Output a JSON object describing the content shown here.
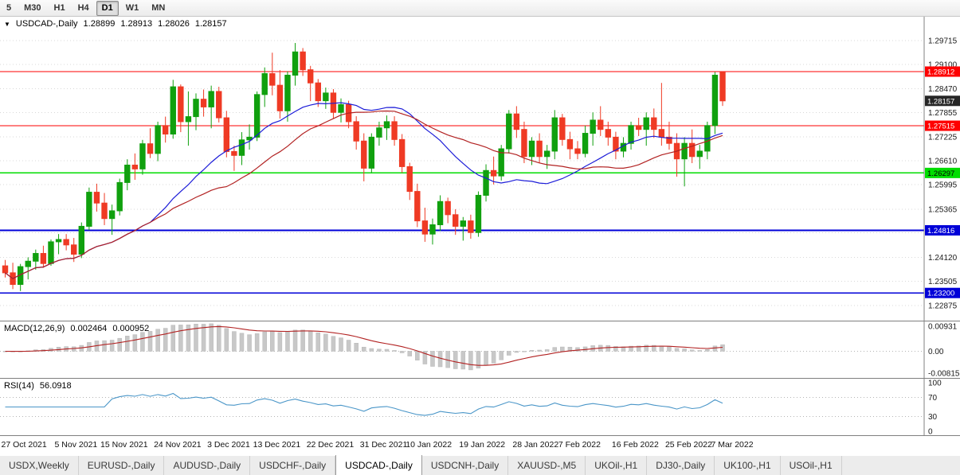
{
  "toolbar": {
    "timeframes": [
      "5",
      "M30",
      "H1",
      "H4",
      "D1",
      "W1",
      "MN"
    ],
    "active": "D1"
  },
  "chart": {
    "header": {
      "collapse_icon": "▼",
      "symbol": "USDCAD-,Daily",
      "open": "1.28899",
      "high": "1.28913",
      "low": "1.28026",
      "close": "1.28157"
    }
  },
  "colors": {
    "up": "#10a00e",
    "down": "#ef3a24",
    "ma_fast": "#1c1cd8",
    "ma_slow": "#b22222",
    "macd_hist": "#c8c8c8",
    "macd_signal": "#b22222",
    "rsi_line": "#4a96c8",
    "grid": "#d8d8d8",
    "axis_border": "#808080",
    "badge_current": "#262626"
  },
  "chart_data": {
    "type": "candlestick",
    "title": "USDCAD-,Daily",
    "ohlc_header": {
      "open": 1.28899,
      "high": 1.28913,
      "low": 1.28026,
      "close": 1.28157
    },
    "y_axis": {
      "min": 1.2265,
      "max": 1.3,
      "ticks": [
        1.29715,
        1.291,
        1.2847,
        1.27855,
        1.27225,
        1.2661,
        1.25995,
        1.25365,
        1.2475,
        1.2412,
        1.23505,
        1.22875
      ]
    },
    "levels": [
      {
        "value": 1.28912,
        "label": "1.28912",
        "color": "#fe0000",
        "badge_text": "#ffffff",
        "width": 1.3
      },
      {
        "value": 1.27515,
        "label": "1.27515",
        "color": "#fe0000",
        "badge_text": "#ffffff",
        "width": 1.3
      },
      {
        "value": 1.26297,
        "label": "1.26297",
        "color": "#00dd00",
        "badge_text": "#000000",
        "width": 1.5
      },
      {
        "value": 1.24816,
        "label": "1.24816",
        "color": "#0000d8",
        "badge_text": "#ffffff",
        "width": 1.7
      },
      {
        "value": 1.232,
        "label": "1.23200",
        "color": "#0000d8",
        "badge_text": "#ffffff",
        "width": 1.7
      }
    ],
    "current_price": {
      "value": 1.28157,
      "label": "1.28157"
    },
    "moving_averages": [
      {
        "type": "sma",
        "period": 20,
        "color": "#1c1cd8"
      },
      {
        "type": "sma",
        "period": 30,
        "color": "#b22222"
      }
    ],
    "candles": [
      [
        "27 Oct 2021",
        1.239,
        1.2405,
        1.236,
        1.2372
      ],
      [
        "28 Oct 2021",
        1.2372,
        1.2398,
        1.233,
        1.2342
      ],
      [
        "29 Oct 2021",
        1.2342,
        1.2395,
        1.2325,
        1.2388
      ],
      [
        "1 Nov 2021",
        1.2388,
        1.2412,
        1.2355,
        1.2402
      ],
      [
        "2 Nov 2021",
        1.2402,
        1.2432,
        1.238,
        1.2422
      ],
      [
        "3 Nov 2021",
        1.2422,
        1.2442,
        1.2385,
        1.2396
      ],
      [
        "4 Nov 2021",
        1.2396,
        1.2458,
        1.239,
        1.2452
      ],
      [
        "5 Nov 2021",
        1.2452,
        1.2472,
        1.242,
        1.2458
      ],
      [
        "8 Nov 2021",
        1.2458,
        1.2472,
        1.243,
        1.2444
      ],
      [
        "9 Nov 2021",
        1.2444,
        1.2462,
        1.24,
        1.242
      ],
      [
        "10 Nov 2021",
        1.242,
        1.2502,
        1.241,
        1.2492
      ],
      [
        "11 Nov 2021",
        1.2492,
        1.2592,
        1.2482,
        1.258
      ],
      [
        "12 Nov 2021",
        1.258,
        1.2602,
        1.253,
        1.2552
      ],
      [
        "15 Nov 2021",
        1.2552,
        1.2578,
        1.2495,
        1.2512
      ],
      [
        "16 Nov 2021",
        1.2512,
        1.2548,
        1.247,
        1.2532
      ],
      [
        "17 Nov 2021",
        1.2532,
        1.2615,
        1.252,
        1.2605
      ],
      [
        "18 Nov 2021",
        1.2605,
        1.2665,
        1.2585,
        1.265
      ],
      [
        "19 Nov 2021",
        1.265,
        1.268,
        1.2612,
        1.264
      ],
      [
        "22 Nov 2021",
        1.264,
        1.2715,
        1.2625,
        1.2705
      ],
      [
        "23 Nov 2021",
        1.2705,
        1.2745,
        1.2668,
        1.268
      ],
      [
        "24 Nov 2021",
        1.268,
        1.2762,
        1.266,
        1.2752
      ],
      [
        "25 Nov 2021",
        1.2752,
        1.2775,
        1.2708,
        1.273
      ],
      [
        "26 Nov 2021",
        1.273,
        1.287,
        1.2718,
        1.2852
      ],
      [
        "29 Nov 2021",
        1.2852,
        1.2858,
        1.2735,
        1.2762
      ],
      [
        "30 Nov 2021",
        1.2762,
        1.284,
        1.27,
        1.2775
      ],
      [
        "1 Dec 2021",
        1.2775,
        1.2835,
        1.274,
        1.282
      ],
      [
        "2 Dec 2021",
        1.282,
        1.2845,
        1.2775,
        1.28
      ],
      [
        "3 Dec 2021",
        1.28,
        1.2855,
        1.2745,
        1.284
      ],
      [
        "6 Dec 2021",
        1.284,
        1.2852,
        1.276,
        1.2772
      ],
      [
        "7 Dec 2021",
        1.2772,
        1.279,
        1.267,
        1.2685
      ],
      [
        "8 Dec 2021",
        1.2685,
        1.27,
        1.2635,
        1.2675
      ],
      [
        "9 Dec 2021",
        1.2675,
        1.2735,
        1.265,
        1.2715
      ],
      [
        "10 Dec 2021",
        1.2715,
        1.2755,
        1.269,
        1.2722
      ],
      [
        "13 Dec 2021",
        1.2722,
        1.284,
        1.2712,
        1.2832
      ],
      [
        "14 Dec 2021",
        1.2832,
        1.2902,
        1.28,
        1.2886
      ],
      [
        "15 Dec 2021",
        1.2886,
        1.294,
        1.283,
        1.2856
      ],
      [
        "16 Dec 2021",
        1.2856,
        1.2895,
        1.277,
        1.279
      ],
      [
        "17 Dec 2021",
        1.279,
        1.2892,
        1.2762,
        1.2882
      ],
      [
        "20 Dec 2021",
        1.2882,
        1.2965,
        1.2855,
        1.2942
      ],
      [
        "21 Dec 2021",
        1.2942,
        1.2952,
        1.288,
        1.2896
      ],
      [
        "22 Dec 2021",
        1.2896,
        1.2906,
        1.2815,
        1.2862
      ],
      [
        "23 Dec 2021",
        1.2862,
        1.2872,
        1.28,
        1.2816
      ],
      [
        "24 Dec 2021",
        1.2816,
        1.285,
        1.2795,
        1.2836
      ],
      [
        "27 Dec 2021",
        1.2836,
        1.2846,
        1.277,
        1.2786
      ],
      [
        "28 Dec 2021",
        1.2786,
        1.2822,
        1.276,
        1.2806
      ],
      [
        "29 Dec 2021",
        1.2806,
        1.2816,
        1.2745,
        1.2762
      ],
      [
        "30 Dec 2021",
        1.2762,
        1.2776,
        1.269,
        1.2712
      ],
      [
        "31 Dec 2021",
        1.2712,
        1.2732,
        1.2608,
        1.2642
      ],
      [
        "3 Jan 2022",
        1.2642,
        1.2732,
        1.263,
        1.2722
      ],
      [
        "4 Jan 2022",
        1.2722,
        1.2762,
        1.27,
        1.2746
      ],
      [
        "5 Jan 2022",
        1.2746,
        1.2778,
        1.2715,
        1.2762
      ],
      [
        "6 Jan 2022",
        1.2762,
        1.2776,
        1.27,
        1.2716
      ],
      [
        "7 Jan 2022",
        1.2716,
        1.273,
        1.263,
        1.2646
      ],
      [
        "10 Jan 2022",
        1.2646,
        1.2656,
        1.256,
        1.2582
      ],
      [
        "11 Jan 2022",
        1.2582,
        1.2602,
        1.249,
        1.2506
      ],
      [
        "12 Jan 2022",
        1.2506,
        1.254,
        1.2452,
        1.2472
      ],
      [
        "13 Jan 2022",
        1.2472,
        1.2512,
        1.2445,
        1.2496
      ],
      [
        "14 Jan 2022",
        1.2496,
        1.2572,
        1.248,
        1.2556
      ],
      [
        "17 Jan 2022",
        1.2556,
        1.2566,
        1.25,
        1.2522
      ],
      [
        "18 Jan 2022",
        1.2522,
        1.2536,
        1.247,
        1.2492
      ],
      [
        "19 Jan 2022",
        1.2492,
        1.2516,
        1.2455,
        1.2506
      ],
      [
        "20 Jan 2022",
        1.2506,
        1.2522,
        1.246,
        1.2476
      ],
      [
        "21 Jan 2022",
        1.2476,
        1.2582,
        1.2465,
        1.2572
      ],
      [
        "24 Jan 2022",
        1.2572,
        1.2652,
        1.2556,
        1.2636
      ],
      [
        "25 Jan 2022",
        1.2636,
        1.2672,
        1.26,
        1.2622
      ],
      [
        "26 Jan 2022",
        1.2622,
        1.2702,
        1.261,
        1.2692
      ],
      [
        "27 Jan 2022",
        1.2692,
        1.2792,
        1.268,
        1.2782
      ],
      [
        "28 Jan 2022",
        1.2782,
        1.2802,
        1.272,
        1.2742
      ],
      [
        "31 Jan 2022",
        1.2742,
        1.2762,
        1.2655,
        1.2672
      ],
      [
        "1 Feb 2022",
        1.2672,
        1.2722,
        1.265,
        1.2712
      ],
      [
        "2 Feb 2022",
        1.2712,
        1.2732,
        1.2655,
        1.2672
      ],
      [
        "3 Feb 2022",
        1.2672,
        1.2702,
        1.264,
        1.2686
      ],
      [
        "4 Feb 2022",
        1.2686,
        1.2792,
        1.2665,
        1.2772
      ],
      [
        "7 Feb 2022",
        1.2772,
        1.2782,
        1.27,
        1.2716
      ],
      [
        "8 Feb 2022",
        1.2716,
        1.2736,
        1.2665,
        1.2692
      ],
      [
        "9 Feb 2022",
        1.2692,
        1.2712,
        1.2665,
        1.268
      ],
      [
        "10 Feb 2022",
        1.268,
        1.2752,
        1.267,
        1.2732
      ],
      [
        "11 Feb 2022",
        1.2732,
        1.2786,
        1.27,
        1.2766
      ],
      [
        "14 Feb 2022",
        1.2766,
        1.2802,
        1.2725,
        1.2742
      ],
      [
        "15 Feb 2022",
        1.2742,
        1.2762,
        1.27,
        1.2722
      ],
      [
        "16 Feb 2022",
        1.2722,
        1.2736,
        1.2665,
        1.2686
      ],
      [
        "17 Feb 2022",
        1.2686,
        1.2722,
        1.267,
        1.2706
      ],
      [
        "18 Feb 2022",
        1.2706,
        1.2762,
        1.269,
        1.2752
      ],
      [
        "21 Feb 2022",
        1.2752,
        1.2772,
        1.2725,
        1.2742
      ],
      [
        "22 Feb 2022",
        1.2742,
        1.2786,
        1.27,
        1.2772
      ],
      [
        "23 Feb 2022",
        1.2772,
        1.2796,
        1.272,
        1.2742
      ],
      [
        "24 Feb 2022",
        1.2742,
        1.2862,
        1.27,
        1.2722
      ],
      [
        "25 Feb 2022",
        1.2722,
        1.2762,
        1.269,
        1.2706
      ],
      [
        "28 Feb 2022",
        1.2706,
        1.2732,
        1.262,
        1.2666
      ],
      [
        "1 Mar 2022",
        1.2666,
        1.2722,
        1.2595,
        1.2706
      ],
      [
        "2 Mar 2022",
        1.2706,
        1.2742,
        1.2655,
        1.2672
      ],
      [
        "3 Mar 2022",
        1.2672,
        1.2702,
        1.264,
        1.2686
      ],
      [
        "4 Mar 2022",
        1.2686,
        1.2762,
        1.2665,
        1.2752
      ],
      [
        "7 Mar 2022",
        1.2752,
        1.289,
        1.273,
        1.2882
      ],
      [
        "8 Mar 2022",
        1.28899,
        1.28913,
        1.28026,
        1.28157
      ]
    ]
  },
  "macd": {
    "label": "MACD(12,26,9)",
    "value_main": "0.002464",
    "value_signal": "0.000952",
    "range": {
      "max": 0.00931,
      "min": -0.00815
    },
    "axis": [
      {
        "value": 0.00931,
        "label": "0.00931"
      },
      {
        "value": 0,
        "label": "0.00"
      },
      {
        "value": -0.00815,
        "label": "-0.00815"
      }
    ]
  },
  "rsi": {
    "label": "RSI(14)",
    "value": "56.0918",
    "range": {
      "max": 100,
      "min": 0
    },
    "levels": [
      70,
      30
    ],
    "axis": [
      {
        "value": 100,
        "label": "100"
      },
      {
        "value": 70,
        "label": "70"
      },
      {
        "value": 30,
        "label": "30"
      },
      {
        "value": 0,
        "label": "0"
      }
    ]
  },
  "time_axis": {
    "labels": [
      "27 Oct 2021",
      "5 Nov 2021",
      "15 Nov 2021",
      "24 Nov 2021",
      "3 Dec 2021",
      "13 Dec 2021",
      "22 Dec 2021",
      "31 Dec 2021",
      "10 Jan 2022",
      "19 Jan 2022",
      "28 Jan 2022",
      "7 Feb 2022",
      "16 Feb 2022",
      "25 Feb 2022",
      "7 Mar 2022"
    ],
    "indices": [
      0,
      7,
      13,
      20,
      27,
      33,
      40,
      47,
      53,
      60,
      67,
      73,
      80,
      87,
      93
    ]
  },
  "tabs": {
    "items": [
      "USDX,Weekly",
      "EURUSD-,Daily",
      "AUDUSD-,Daily",
      "USDCHF-,Daily",
      "USDCAD-,Daily",
      "USDCNH-,Daily",
      "XAUUSD-,M5",
      "UKOil-,H1",
      "DJ30-,Daily",
      "UK100-,H1",
      "USOil-,H1"
    ],
    "active_index": 4
  }
}
